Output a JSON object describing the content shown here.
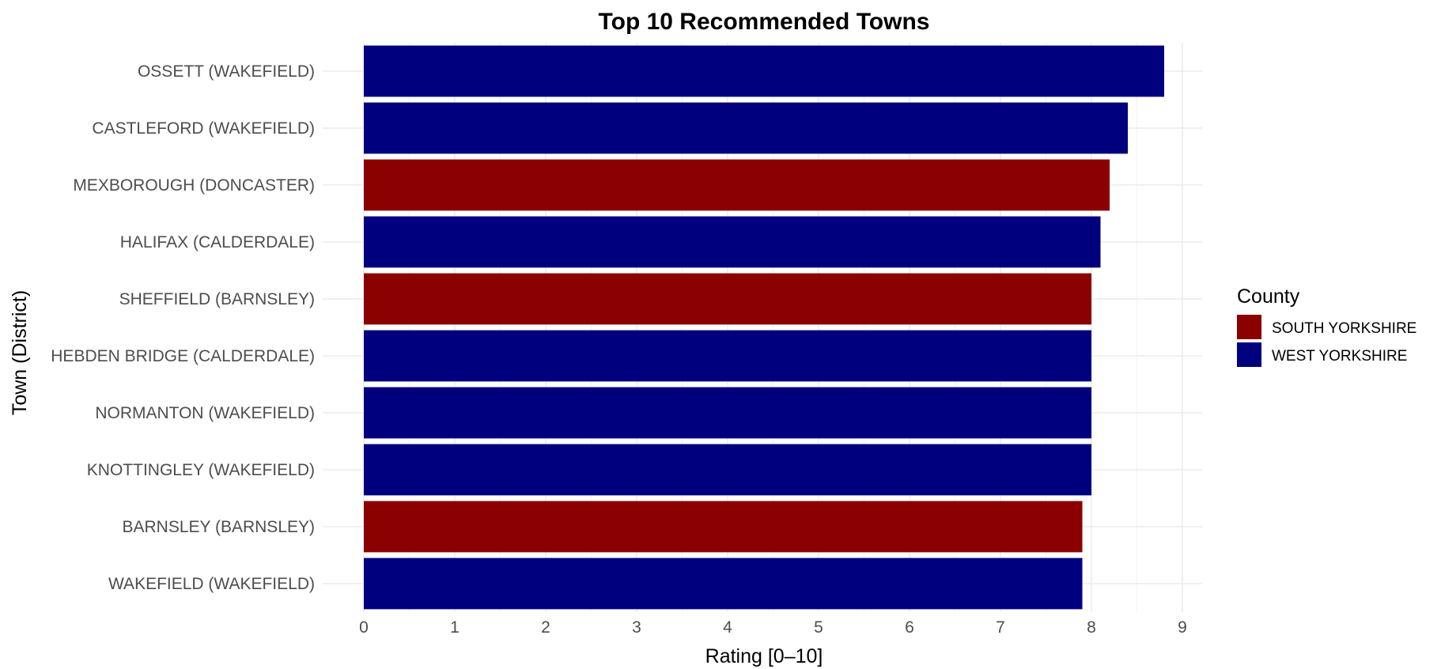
{
  "chart_data": {
    "type": "bar",
    "orientation": "horizontal",
    "title": "Top 10 Recommended Towns",
    "xlabel": "Rating [0–10]",
    "ylabel": "Town (District)",
    "xlim": [
      0,
      9.25
    ],
    "xticks": [
      "0",
      "1",
      "2",
      "3",
      "4",
      "5",
      "6",
      "7",
      "8",
      "9"
    ],
    "grid": true,
    "legend": {
      "title": "County",
      "position": "right",
      "entries": [
        {
          "label": "SOUTH YORKSHIRE",
          "color": "#8B0000"
        },
        {
          "label": "WEST YORKSHIRE",
          "color": "#00007F"
        }
      ]
    },
    "bars": [
      {
        "category": "OSSETT (WAKEFIELD)",
        "value": 8.8,
        "county": "WEST YORKSHIRE"
      },
      {
        "category": "CASTLEFORD (WAKEFIELD)",
        "value": 8.4,
        "county": "WEST YORKSHIRE"
      },
      {
        "category": "MEXBOROUGH (DONCASTER)",
        "value": 8.2,
        "county": "SOUTH YORKSHIRE"
      },
      {
        "category": "HALIFAX (CALDERDALE)",
        "value": 8.1,
        "county": "WEST YORKSHIRE"
      },
      {
        "category": "SHEFFIELD (BARNSLEY)",
        "value": 8.0,
        "county": "SOUTH YORKSHIRE"
      },
      {
        "category": "HEBDEN BRIDGE (CALDERDALE)",
        "value": 8.0,
        "county": "WEST YORKSHIRE"
      },
      {
        "category": "NORMANTON (WAKEFIELD)",
        "value": 8.0,
        "county": "WEST YORKSHIRE"
      },
      {
        "category": "KNOTTINGLEY (WAKEFIELD)",
        "value": 8.0,
        "county": "WEST YORKSHIRE"
      },
      {
        "category": "BARNSLEY (BARNSLEY)",
        "value": 7.9,
        "county": "SOUTH YORKSHIRE"
      },
      {
        "category": "WAKEFIELD (WAKEFIELD)",
        "value": 7.9,
        "county": "WEST YORKSHIRE"
      }
    ]
  }
}
